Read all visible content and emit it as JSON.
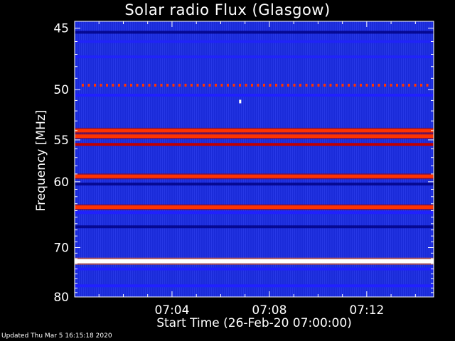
{
  "chart_data": {
    "type": "heatmap",
    "title": "Solar radio Flux (Glasgow)",
    "xlabel": "Start Time (26-Feb-20 07:00:00)",
    "ylabel": "Frequency [MHz]",
    "footer": "Updated Thu Mar  5 16:15:18 2020",
    "x_tick_labels": [
      "07:04",
      "07:08",
      "07:12"
    ],
    "x_ticks_minutes": [
      4,
      8,
      12
    ],
    "xlim_minutes": [
      0,
      14.75
    ],
    "y_ticks": [
      45,
      50,
      55,
      60,
      70,
      80
    ],
    "y_tick_labels": [
      "45",
      "50",
      "55",
      "60",
      "70",
      "80"
    ],
    "ylim": [
      44.5,
      80
    ],
    "y_scale": "reciprocal",
    "colormap": [
      "#00007f",
      "#2020ff",
      "#c00000",
      "#ff3300",
      "#ffff66",
      "#ffffff"
    ],
    "background_color": "#1a2bd9",
    "bands": [
      {
        "freq": 45.3,
        "level": 0.15
      },
      {
        "freq": 46.0,
        "level": 0.25
      },
      {
        "freq": 47.2,
        "level": 0.25
      },
      {
        "freq": 49.6,
        "level": 0.7,
        "dotted": true
      },
      {
        "freq": 50.5,
        "level": 0.35
      },
      {
        "freq": 54.0,
        "level": 0.75
      },
      {
        "freq": 54.6,
        "level": 0.7
      },
      {
        "freq": 55.5,
        "level": 0.45
      },
      {
        "freq": 59.3,
        "level": 0.75
      },
      {
        "freq": 60.3,
        "level": 0.15
      },
      {
        "freq": 63.5,
        "level": 0.75
      },
      {
        "freq": 64.3,
        "level": 0.35
      },
      {
        "freq": 66.5,
        "level": 0.1
      },
      {
        "freq": 72.5,
        "level": 1.0
      },
      {
        "freq": 74.0,
        "level": 0.3
      },
      {
        "freq": 77.5,
        "level": 0.3
      }
    ],
    "point": {
      "minute": 6.8,
      "freq": 51.1,
      "level": 1.0
    }
  }
}
